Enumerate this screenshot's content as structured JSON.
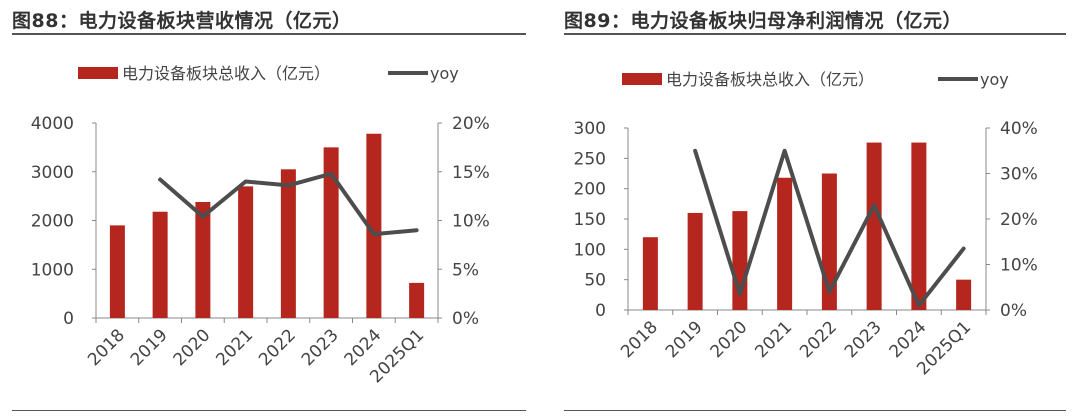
{
  "colors": {
    "bar": "#b5261e",
    "line": "#4d4d4d",
    "axis": "#888888",
    "text": "#444444"
  },
  "chart_data": [
    {
      "figure_title": "图88：电力设备板块营收情况（亿元）",
      "type": "bar",
      "categories": [
        "2018",
        "2019",
        "2020",
        "2021",
        "2022",
        "2023",
        "2024",
        "2025Q1"
      ],
      "series": [
        {
          "name": "电力设备板块总收入（亿元）",
          "type": "bar",
          "axis": "left",
          "values": [
            1900,
            2180,
            2380,
            2700,
            3050,
            3500,
            3780,
            720
          ]
        },
        {
          "name": "yoy",
          "type": "line",
          "axis": "right",
          "values": [
            null,
            14.2,
            10.4,
            14.0,
            13.6,
            14.8,
            8.6,
            9.0
          ]
        }
      ],
      "y_left": {
        "ylim": [
          0,
          4000
        ],
        "ticks": [
          "0",
          "1000",
          "2000",
          "3000",
          "4000"
        ],
        "tick_values": [
          0,
          1000,
          2000,
          3000,
          4000
        ]
      },
      "y_right": {
        "ylim": [
          0,
          20
        ],
        "ticks": [
          "0%",
          "5%",
          "10%",
          "15%",
          "20%"
        ],
        "tick_values": [
          0,
          5,
          10,
          15,
          20
        ]
      },
      "grid": false,
      "legend_position": "top-left"
    },
    {
      "figure_title": "图89：电力设备板块归母净利润情况（亿元）",
      "type": "bar",
      "categories": [
        "2018",
        "2019",
        "2020",
        "2021",
        "2022",
        "2023",
        "2024",
        "2025Q1"
      ],
      "series": [
        {
          "name": "电力设备板块总收入（亿元）",
          "type": "bar",
          "axis": "left",
          "values": [
            120,
            160,
            163,
            218,
            225,
            276,
            276,
            50
          ]
        },
        {
          "name": "yoy",
          "type": "line",
          "axis": "right",
          "values": [
            null,
            35,
            3.5,
            35,
            4.0,
            23,
            1.0,
            13.5
          ]
        }
      ],
      "y_left": {
        "ylim": [
          0,
          300
        ],
        "ticks": [
          "0",
          "50",
          "100",
          "150",
          "200",
          "250",
          "300"
        ],
        "tick_values": [
          0,
          50,
          100,
          150,
          200,
          250,
          300
        ]
      },
      "y_right": {
        "ylim": [
          0,
          40
        ],
        "ticks": [
          "0%",
          "10%",
          "20%",
          "30%",
          "40%"
        ],
        "tick_values": [
          0,
          10,
          20,
          30,
          40
        ]
      },
      "grid": false,
      "legend_position": "top-left"
    }
  ]
}
